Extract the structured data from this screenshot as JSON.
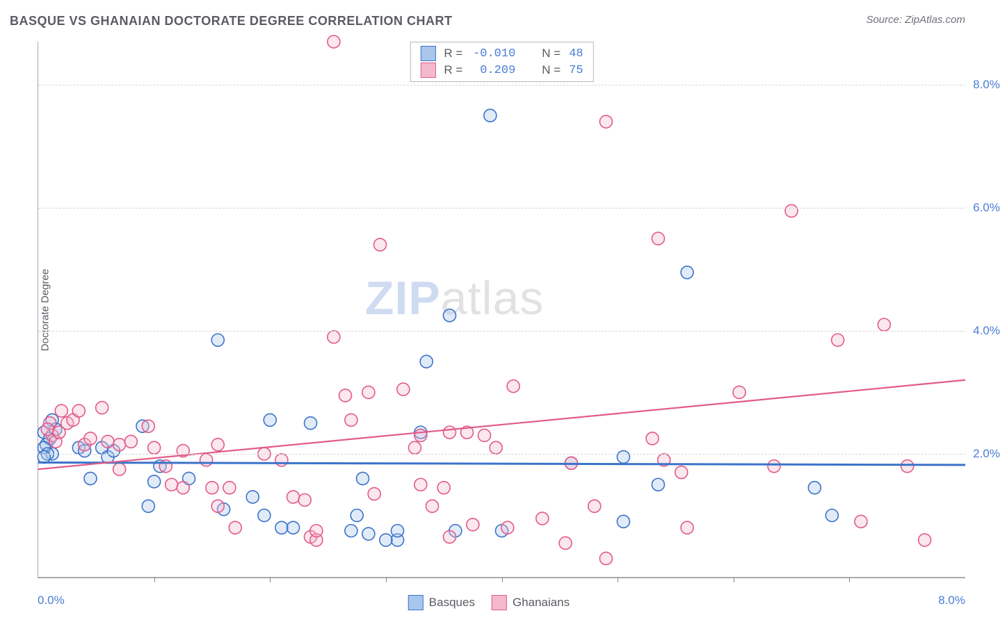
{
  "title": "BASQUE VS GHANAIAN DOCTORATE DEGREE CORRELATION CHART",
  "source_label": "Source: ZipAtlas.com",
  "watermark_zip": "ZIP",
  "watermark_atlas": "atlas",
  "ylabel": "Doctorate Degree",
  "xmin_label": "0.0%",
  "xmax_label": "8.0%",
  "chart": {
    "type": "scatter",
    "xlim": [
      0,
      8
    ],
    "ylim": [
      0,
      8.7
    ],
    "xtick_positions": [
      1,
      2,
      3,
      4,
      5,
      6,
      7
    ],
    "ytick_positions": [
      2,
      4,
      6,
      8
    ],
    "ytick_labels": [
      "2.0%",
      "4.0%",
      "6.0%",
      "8.0%"
    ],
    "grid_color": "#d7d7dc",
    "axis_color": "#a9a9b0",
    "background_color": "#ffffff",
    "ytick_label_color": "#4a7dd6",
    "marker_radius": 9,
    "marker_fill_opacity": 0.35,
    "marker_stroke_width": 1.6,
    "series": [
      {
        "name": "Basques",
        "color_stroke": "#3b73c9",
        "color_fill": "#a9c6ec",
        "R": "-0.010",
        "N": "48",
        "trend": {
          "y_at_xmin": 1.86,
          "y_at_xmax": 1.82,
          "stroke_width": 3
        },
        "points": [
          [
            0.05,
            2.35
          ],
          [
            0.07,
            2.15
          ],
          [
            0.1,
            2.25
          ],
          [
            0.12,
            2.0
          ],
          [
            0.15,
            2.4
          ],
          [
            0.12,
            2.55
          ],
          [
            0.05,
            2.1
          ],
          [
            0.08,
            2.0
          ],
          [
            0.05,
            1.95
          ],
          [
            0.55,
            2.1
          ],
          [
            0.6,
            1.95
          ],
          [
            0.65,
            2.05
          ],
          [
            0.9,
            2.45
          ],
          [
            0.45,
            1.6
          ],
          [
            0.35,
            2.1
          ],
          [
            0.4,
            2.05
          ],
          [
            0.95,
            1.15
          ],
          [
            1.0,
            1.55
          ],
          [
            1.05,
            1.8
          ],
          [
            1.3,
            1.6
          ],
          [
            1.55,
            3.85
          ],
          [
            1.6,
            1.1
          ],
          [
            1.95,
            1.0
          ],
          [
            1.85,
            1.3
          ],
          [
            2.0,
            2.55
          ],
          [
            2.1,
            0.8
          ],
          [
            2.2,
            0.8
          ],
          [
            2.35,
            2.5
          ],
          [
            2.7,
            0.75
          ],
          [
            2.75,
            1.0
          ],
          [
            2.8,
            1.6
          ],
          [
            2.85,
            0.7
          ],
          [
            3.35,
            3.5
          ],
          [
            3.3,
            2.35
          ],
          [
            3.1,
            0.6
          ],
          [
            3.1,
            0.75
          ],
          [
            3.0,
            0.6
          ],
          [
            3.55,
            4.25
          ],
          [
            3.6,
            0.75
          ],
          [
            3.9,
            7.5
          ],
          [
            4.0,
            0.75
          ],
          [
            4.6,
            1.85
          ],
          [
            5.05,
            0.9
          ],
          [
            5.05,
            1.95
          ],
          [
            5.35,
            1.5
          ],
          [
            5.6,
            4.95
          ],
          [
            6.7,
            1.45
          ],
          [
            6.85,
            1.0
          ]
        ]
      },
      {
        "name": "Ghanaians",
        "color_stroke": "#e25a8a",
        "color_fill": "#f4b9cf",
        "R": "0.209",
        "N": "75",
        "trend": {
          "y_at_xmin": 1.75,
          "y_at_xmax": 3.2,
          "stroke_width": 2.2
        },
        "points": [
          [
            0.1,
            2.5
          ],
          [
            0.12,
            2.3
          ],
          [
            0.08,
            2.4
          ],
          [
            0.2,
            2.7
          ],
          [
            0.25,
            2.5
          ],
          [
            0.3,
            2.55
          ],
          [
            0.35,
            2.7
          ],
          [
            0.15,
            2.2
          ],
          [
            0.18,
            2.35
          ],
          [
            0.55,
            2.75
          ],
          [
            0.6,
            2.2
          ],
          [
            0.7,
            2.15
          ],
          [
            0.8,
            2.2
          ],
          [
            1.0,
            2.1
          ],
          [
            0.4,
            2.15
          ],
          [
            0.45,
            2.25
          ],
          [
            0.7,
            1.75
          ],
          [
            1.15,
            1.5
          ],
          [
            1.1,
            1.8
          ],
          [
            1.25,
            1.45
          ],
          [
            1.45,
            1.9
          ],
          [
            1.5,
            1.45
          ],
          [
            1.55,
            1.15
          ],
          [
            1.55,
            2.15
          ],
          [
            1.7,
            0.8
          ],
          [
            1.65,
            1.45
          ],
          [
            1.95,
            2.0
          ],
          [
            2.1,
            1.9
          ],
          [
            2.2,
            1.3
          ],
          [
            2.3,
            1.25
          ],
          [
            2.35,
            0.65
          ],
          [
            2.55,
            3.9
          ],
          [
            2.4,
            0.6
          ],
          [
            2.4,
            0.75
          ],
          [
            2.85,
            3.0
          ],
          [
            2.65,
            2.95
          ],
          [
            2.7,
            2.55
          ],
          [
            2.9,
            1.35
          ],
          [
            2.95,
            5.4
          ],
          [
            3.15,
            3.05
          ],
          [
            3.25,
            2.1
          ],
          [
            3.3,
            1.5
          ],
          [
            3.4,
            1.15
          ],
          [
            3.5,
            1.45
          ],
          [
            3.55,
            2.35
          ],
          [
            3.55,
            0.65
          ],
          [
            3.7,
            2.35
          ],
          [
            3.85,
            2.3
          ],
          [
            3.75,
            0.85
          ],
          [
            4.05,
            0.8
          ],
          [
            4.1,
            3.1
          ],
          [
            4.35,
            0.95
          ],
          [
            4.55,
            0.55
          ],
          [
            4.6,
            1.85
          ],
          [
            4.8,
            1.15
          ],
          [
            4.9,
            7.4
          ],
          [
            4.9,
            0.3
          ],
          [
            5.3,
            2.25
          ],
          [
            5.4,
            1.9
          ],
          [
            5.35,
            5.5
          ],
          [
            5.55,
            1.7
          ],
          [
            5.6,
            0.8
          ],
          [
            6.05,
            3.0
          ],
          [
            6.35,
            1.8
          ],
          [
            6.5,
            5.95
          ],
          [
            6.9,
            3.85
          ],
          [
            7.1,
            0.9
          ],
          [
            7.3,
            4.1
          ],
          [
            7.5,
            1.8
          ],
          [
            7.65,
            0.6
          ],
          [
            2.55,
            8.7
          ],
          [
            1.25,
            2.05
          ],
          [
            0.95,
            2.45
          ],
          [
            3.95,
            2.1
          ],
          [
            3.3,
            2.3
          ]
        ]
      }
    ]
  },
  "legend_top_rows": [
    {
      "series_idx": 0,
      "r_label": "R =",
      "n_label": "N ="
    },
    {
      "series_idx": 1,
      "r_label": "R =",
      "n_label": "N ="
    }
  ],
  "legend_bottom_items": [
    {
      "series_idx": 0
    },
    {
      "series_idx": 1
    }
  ]
}
